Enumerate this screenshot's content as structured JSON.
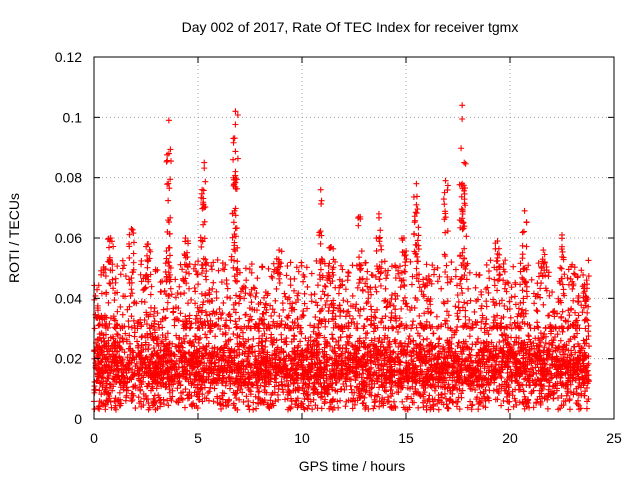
{
  "chart_data": {
    "type": "scatter",
    "title": "Day 002 of 2017, Rate Of TEC Index for receiver tgmx",
    "xlabel": "GPS time / hours",
    "ylabel": "ROTI / TECUs",
    "xlim": [
      0,
      25
    ],
    "ylim": [
      0,
      0.12
    ],
    "x_ticks": [
      "0",
      "5",
      "10",
      "15",
      "20",
      "25"
    ],
    "y_ticks": [
      "0",
      "0.02",
      "0.04",
      "0.06",
      "0.08",
      "0.1",
      "0.12"
    ],
    "x_tick_values": [
      0,
      5,
      10,
      15,
      20,
      25
    ],
    "y_tick_values": [
      0,
      0.02,
      0.04,
      0.06,
      0.08,
      0.1,
      0.12
    ],
    "grid": true,
    "marker": "+",
    "color": "#ff0000",
    "series": [
      {
        "x_range": [
          0,
          23.8
        ],
        "baseline_range": [
          0.005,
          0.03
        ],
        "typical_upper": 0.045,
        "peaks": [
          {
            "x": 3.6,
            "y": 0.099
          },
          {
            "x": 3.6,
            "y": 0.088
          },
          {
            "x": 5.3,
            "y": 0.085
          },
          {
            "x": 5.2,
            "y": 0.076
          },
          {
            "x": 6.8,
            "y": 0.102
          },
          {
            "x": 6.7,
            "y": 0.093
          },
          {
            "x": 6.8,
            "y": 0.082
          },
          {
            "x": 10.9,
            "y": 0.076
          },
          {
            "x": 12.8,
            "y": 0.067
          },
          {
            "x": 13.7,
            "y": 0.068
          },
          {
            "x": 15.5,
            "y": 0.078
          },
          {
            "x": 15.5,
            "y": 0.071
          },
          {
            "x": 16.9,
            "y": 0.079
          },
          {
            "x": 17.7,
            "y": 0.104
          },
          {
            "x": 17.8,
            "y": 0.085
          },
          {
            "x": 17.7,
            "y": 0.078
          },
          {
            "x": 20.7,
            "y": 0.069
          },
          {
            "x": 22.5,
            "y": 0.061
          },
          {
            "x": 1.8,
            "y": 0.063
          },
          {
            "x": 0.8,
            "y": 0.06
          },
          {
            "x": 2.6,
            "y": 0.058
          },
          {
            "x": 4.4,
            "y": 0.06
          },
          {
            "x": 8.9,
            "y": 0.056
          },
          {
            "x": 11.4,
            "y": 0.057
          },
          {
            "x": 14.9,
            "y": 0.06
          },
          {
            "x": 19.4,
            "y": 0.059
          },
          {
            "x": 21.6,
            "y": 0.056
          },
          {
            "x": 23.6,
            "y": 0.039
          }
        ]
      }
    ]
  }
}
